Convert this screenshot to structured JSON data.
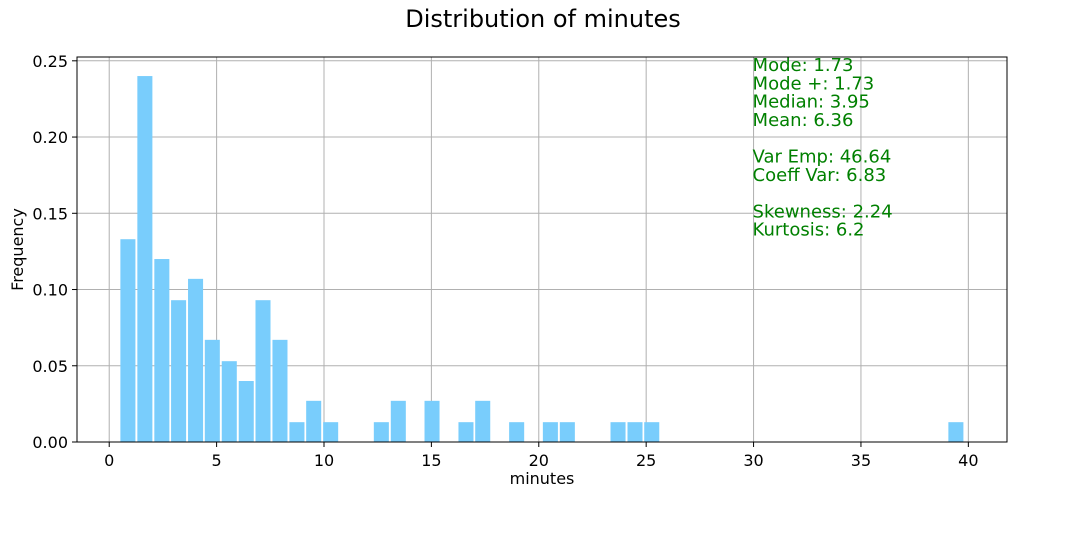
{
  "chart_data": {
    "type": "bar",
    "title": "Distribution of minutes",
    "xlabel": "minutes",
    "ylabel": "Frequency",
    "xlim": [
      -1.5,
      41.8
    ],
    "ylim": [
      0,
      0.2525
    ],
    "bar_width": 0.7,
    "bar_color": "#79cdfc",
    "grid": true,
    "x_ticks": [
      0,
      5,
      10,
      15,
      20,
      25,
      30,
      35,
      40
    ],
    "x_tick_labels": [
      "0",
      "5",
      "10",
      "15",
      "20",
      "25",
      "30",
      "35",
      "40"
    ],
    "y_ticks": [
      0,
      0.05,
      0.1,
      0.15,
      0.2,
      0.25
    ],
    "y_tick_labels": [
      "0.00",
      "0.05",
      "0.10",
      "0.15",
      "0.20",
      "0.25"
    ],
    "x": [
      0.87,
      1.66,
      2.45,
      3.23,
      4.02,
      4.8,
      5.59,
      6.38,
      7.16,
      7.95,
      8.74,
      9.52,
      10.31,
      12.67,
      13.46,
      15.03,
      16.61,
      17.39,
      18.97,
      20.54,
      21.33,
      23.69,
      24.48,
      25.26,
      39.42
    ],
    "values": [
      0.133,
      0.24,
      0.12,
      0.093,
      0.107,
      0.067,
      0.053,
      0.04,
      0.093,
      0.067,
      0.013,
      0.027,
      0.013,
      0.013,
      0.027,
      0.027,
      0.013,
      0.027,
      0.013,
      0.013,
      0.013,
      0.013,
      0.013,
      0.013,
      0.013
    ]
  },
  "stats": {
    "color": "#008000",
    "lines": [
      "Mode: 1.73",
      "Mode +: 1.73",
      "Median: 3.95",
      "Mean: 6.36",
      "",
      "Var Emp: 46.64",
      "Coeff Var: 6.83",
      "",
      "Skewness: 2.24",
      "Kurtosis: 6.2"
    ]
  }
}
